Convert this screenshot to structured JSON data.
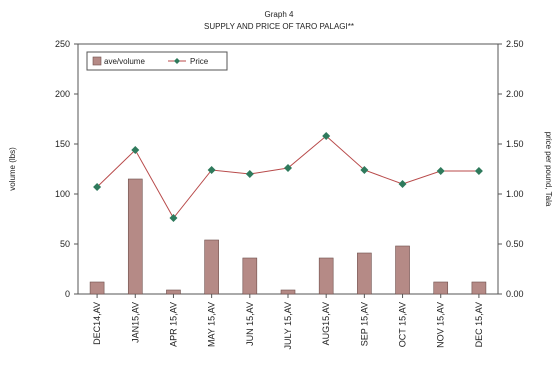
{
  "chart_data": {
    "type": "bar",
    "title": "Graph 4",
    "subtitle": "SUPPLY AND PRICE OF TARO PALAGI**",
    "categories": [
      "DEC14,AV",
      "JAN15,AV",
      "APR 15,AV",
      "MAY 15,AV",
      "JUN 15,AV",
      "JULY 15,AV",
      "AUG15,AV",
      "SEP 15,AV",
      "OCT 15,AV",
      "NOV 15,AV",
      "DEC 15,AV"
    ],
    "series": [
      {
        "name": "ave/volume",
        "type": "bar",
        "axis": "left",
        "color": "#b58a86",
        "values": [
          12,
          115,
          4,
          54,
          36,
          4,
          36,
          41,
          48,
          12,
          12
        ]
      },
      {
        "name": "Price",
        "type": "line",
        "axis": "right",
        "color": "#b84a4a",
        "marker_color": "#2f7a5c",
        "values": [
          1.07,
          1.44,
          0.76,
          1.24,
          1.2,
          1.26,
          1.58,
          1.24,
          1.1,
          1.23,
          1.23
        ]
      }
    ],
    "ylabel_left": "volume (lbs)",
    "ylabel_right": "price per pound, Tala",
    "ylim_left": [
      0,
      250
    ],
    "yticks_left": [
      "0",
      "50",
      "100",
      "150",
      "200",
      "250"
    ],
    "ylim_right": [
      0,
      2.5
    ],
    "yticks_right": [
      "0.00",
      "0.50",
      "1.00",
      "1.50",
      "2.00",
      "2.50"
    ],
    "grid": false,
    "legend": "top-left"
  }
}
